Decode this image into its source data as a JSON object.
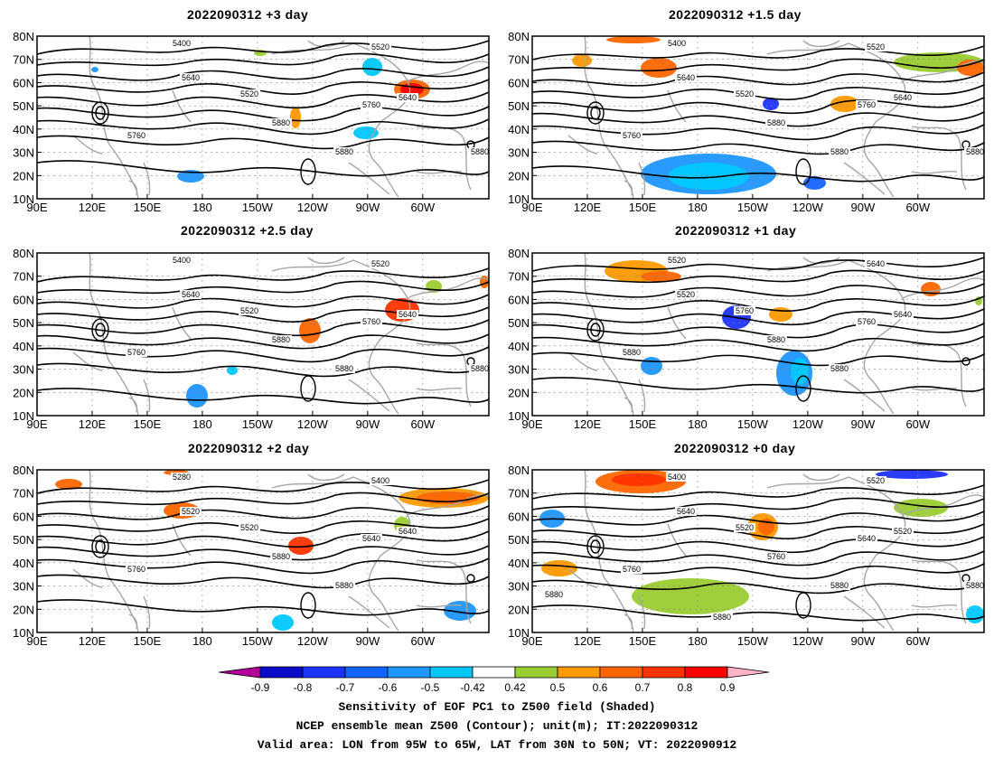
{
  "panels": [
    {
      "id": "p1",
      "title": "2022090312 +3 day",
      "contour_labels": [
        "5400",
        "5520",
        "5640",
        "5520",
        "5640",
        "5760",
        "5760",
        "5880",
        "5880",
        "5880"
      ]
    },
    {
      "id": "p2",
      "title": "2022090312 +1.5 day",
      "contour_labels": [
        "5400",
        "5520",
        "5640",
        "5520",
        "5640",
        "5760",
        "5760",
        "5880",
        "5880",
        "5880"
      ]
    },
    {
      "id": "p3",
      "title": "2022090312 +2.5 day",
      "contour_labels": [
        "5400",
        "5520",
        "5640",
        "5520",
        "5640",
        "5760",
        "5760",
        "5880",
        "5880",
        "5880"
      ]
    },
    {
      "id": "p4",
      "title": "2022090312 +1 day",
      "contour_labels": [
        "5520",
        "5640",
        "5520",
        "5760",
        "5640",
        "5760",
        "5880",
        "5880",
        "5880"
      ]
    },
    {
      "id": "p5",
      "title": "2022090312 +2 day",
      "contour_labels": [
        "5280",
        "5400",
        "5520",
        "5520",
        "5640",
        "5640",
        "5760",
        "5880",
        "5880"
      ]
    },
    {
      "id": "p6",
      "title": "2022090312 +0 day",
      "contour_labels": [
        "5400",
        "5520",
        "5640",
        "5520",
        "5520",
        "5640",
        "5760",
        "5760",
        "5880",
        "5880",
        "5880",
        "5880"
      ]
    }
  ],
  "axes": {
    "lon_labels": [
      "90E",
      "120E",
      "150E",
      "180",
      "150W",
      "120W",
      "90W",
      "60W"
    ],
    "lat_labels": [
      "10N",
      "20N",
      "30N",
      "40N",
      "50N",
      "60N",
      "70N",
      "80N"
    ]
  },
  "colorbar": {
    "labels": [
      "-0.9",
      "-0.8",
      "-0.7",
      "-0.6",
      "-0.5",
      "-0.42",
      "0.42",
      "0.5",
      "0.6",
      "0.7",
      "0.8",
      "0.9"
    ],
    "colors": [
      "#0a0ac8",
      "#1e32ff",
      "#1464ff",
      "#1e96ff",
      "#00c8ff",
      "#ffffff",
      "#9acd32",
      "#ff9900",
      "#ff6600",
      "#ff3300",
      "#ff0000"
    ],
    "end_left": "#b4009b",
    "end_right": "#ffb4c8"
  },
  "caption": {
    "line1": "Sensitivity of EOF PC1 to Z500 field (Shaded)",
    "line2": "NCEP ensemble mean Z500 (Contour); unit(m); IT:2022090312",
    "line3": "Valid area: LON from 95W to 65W, LAT from 30N to 50N; VT: 2022090912"
  }
}
